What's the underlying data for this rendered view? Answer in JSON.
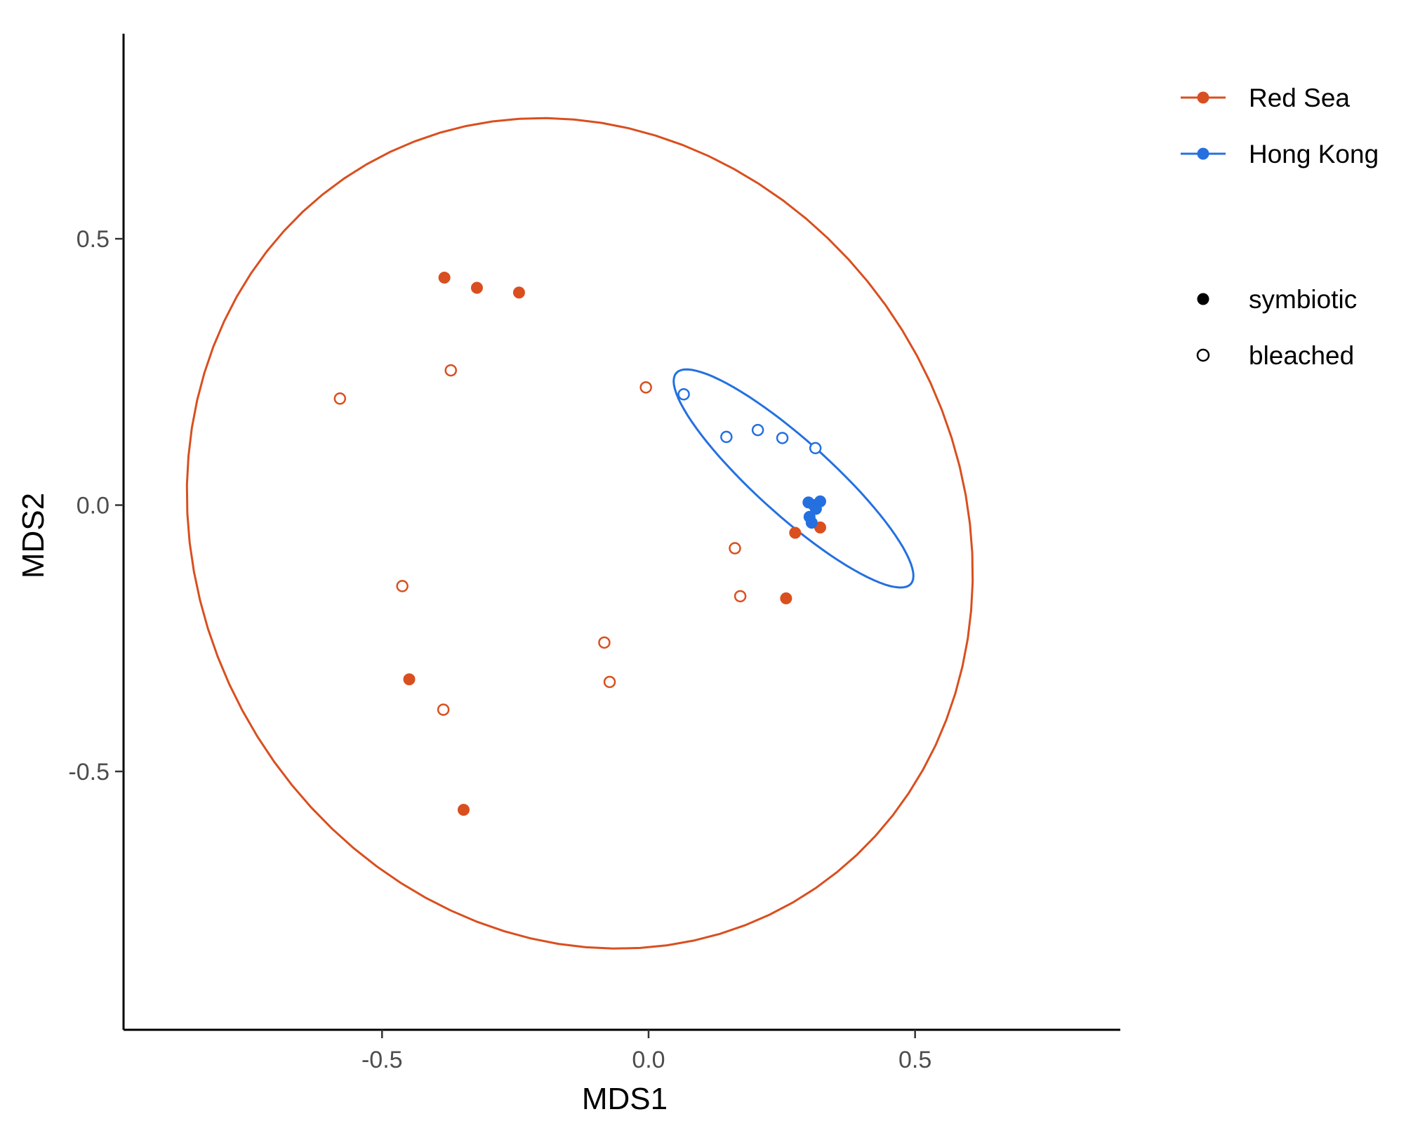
{
  "chart_data": {
    "type": "scatter",
    "title": "",
    "xlabel": "MDS1",
    "ylabel": "MDS2",
    "xlim": [
      -0.985,
      0.885
    ],
    "ylim": [
      -0.985,
      0.885
    ],
    "x_ticks": [
      -0.5,
      0.0,
      0.5
    ],
    "y_ticks": [
      -0.5,
      0.0,
      0.5
    ],
    "x_tick_labels": [
      "-0.5",
      "0.0",
      "0.5"
    ],
    "y_tick_labels": [
      "-0.5",
      "0.0",
      "0.5"
    ],
    "grid": false,
    "legend_position": "right",
    "colors": {
      "Red Sea": "#D94F1F",
      "Hong Kong": "#2470E0"
    },
    "series": [
      {
        "name": "Red Sea",
        "symbiotic": [
          {
            "x": -0.383,
            "y": 0.427
          },
          {
            "x": -0.322,
            "y": 0.408
          },
          {
            "x": -0.243,
            "y": 0.399
          },
          {
            "x": 0.275,
            "y": -0.052
          },
          {
            "x": 0.322,
            "y": -0.042
          },
          {
            "x": 0.258,
            "y": -0.175
          },
          {
            "x": -0.449,
            "y": -0.327
          },
          {
            "x": -0.347,
            "y": -0.572
          }
        ],
        "bleached": [
          {
            "x": -0.371,
            "y": 0.253
          },
          {
            "x": -0.579,
            "y": 0.2
          },
          {
            "x": -0.005,
            "y": 0.221
          },
          {
            "x": 0.162,
            "y": -0.081
          },
          {
            "x": 0.172,
            "y": -0.171
          },
          {
            "x": -0.462,
            "y": -0.152
          },
          {
            "x": -0.083,
            "y": -0.258
          },
          {
            "x": -0.073,
            "y": -0.332
          },
          {
            "x": -0.385,
            "y": -0.384
          }
        ],
        "ellipse": {
          "center": [
            -0.129,
            -0.053
          ],
          "semi_axes": [
            0.8,
            0.715
          ],
          "angle_deg": -60
        }
      },
      {
        "name": "Hong Kong",
        "symbiotic": [
          {
            "x": 0.3,
            "y": 0.005
          },
          {
            "x": 0.31,
            "y": 0.0
          },
          {
            "x": 0.322,
            "y": 0.007
          },
          {
            "x": 0.314,
            "y": -0.007
          },
          {
            "x": 0.302,
            "y": -0.022
          },
          {
            "x": 0.306,
            "y": -0.033
          }
        ],
        "bleached": [
          {
            "x": 0.066,
            "y": 0.208
          },
          {
            "x": 0.146,
            "y": 0.128
          },
          {
            "x": 0.205,
            "y": 0.141
          },
          {
            "x": 0.251,
            "y": 0.126
          },
          {
            "x": 0.313,
            "y": 0.107
          }
        ],
        "ellipse": {
          "center": [
            0.272,
            0.05
          ],
          "semi_axes": [
            0.296,
            0.07
          ],
          "angle_deg": -42
        }
      }
    ],
    "legend": {
      "colour": [
        "Red Sea",
        "Hong Kong"
      ],
      "shape": [
        "symbiotic",
        "bleached"
      ]
    }
  }
}
